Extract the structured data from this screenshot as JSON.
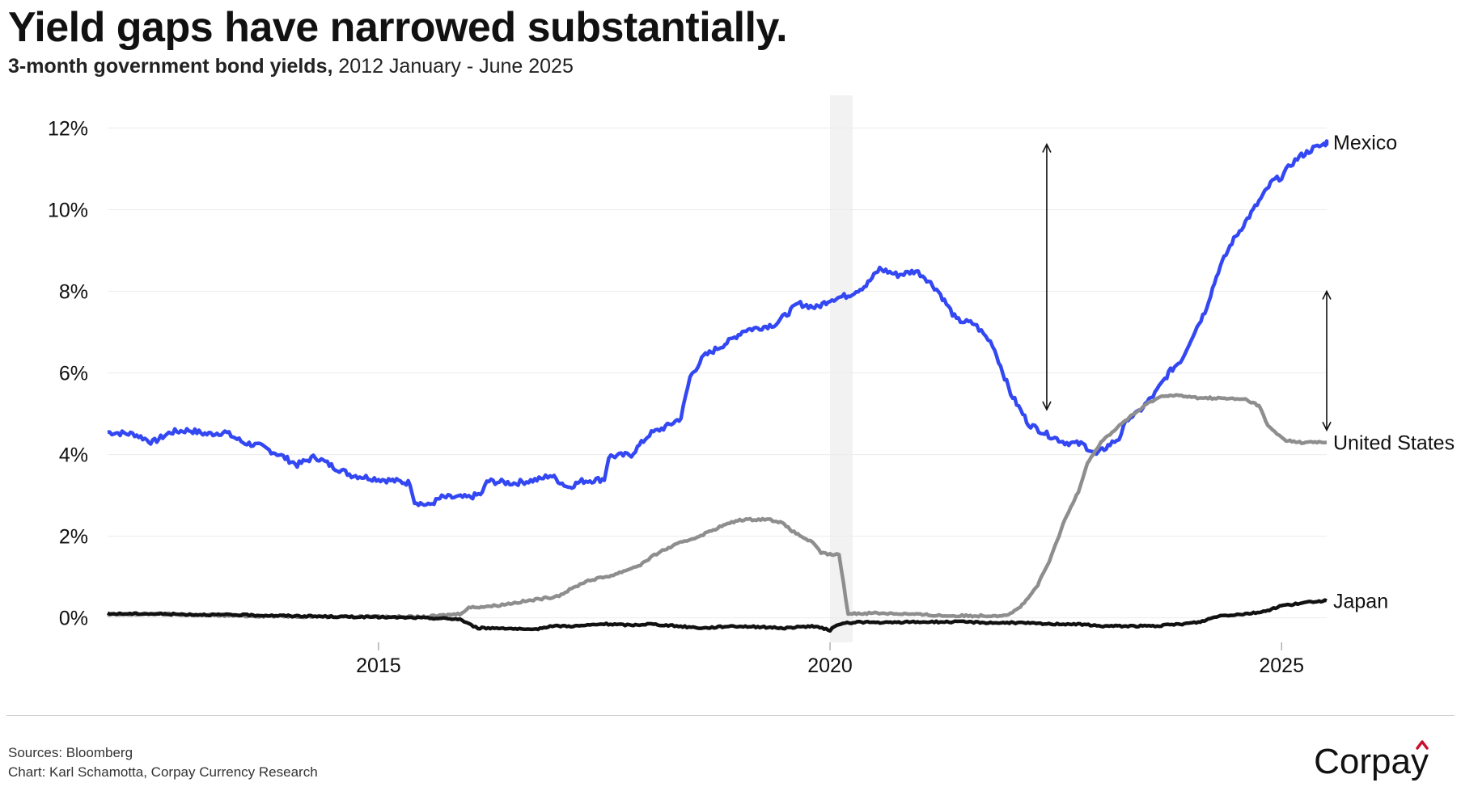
{
  "header": {
    "title": "Yield gaps have narrowed substantially.",
    "subtitle_bold": "3-month government bond yields,",
    "subtitle_rest": " 2012 January - June 2025"
  },
  "footer": {
    "sources": "Sources: Bloomberg",
    "credit": "Chart: Karl Schamotta, Corpay Currency Research",
    "logo": "Corpay",
    "logo_accent": "#c8102e"
  },
  "chart_data": {
    "type": "line",
    "title": "Yield gaps have narrowed substantially.",
    "xlabel": "",
    "ylabel": "",
    "xlim": [
      2012.0,
      2025.5
    ],
    "ylim": [
      -0.6,
      12.8
    ],
    "yticks": [
      0,
      2,
      4,
      6,
      8,
      10,
      12
    ],
    "ytick_labels": [
      "0%",
      "2%",
      "4%",
      "6%",
      "8%",
      "10%",
      "12%"
    ],
    "xticks": [
      2015,
      2020,
      2025
    ],
    "xtick_labels": [
      "2015",
      "2020",
      "2025"
    ],
    "grid": true,
    "shaded_region": {
      "x0": 2020.0,
      "x1": 2020.25,
      "color": "#f2f2f2"
    },
    "series": [
      {
        "name": "Mexico",
        "color": "#3347f2",
        "points": [
          [
            2012.0,
            4.55
          ],
          [
            2012.3,
            4.5
          ],
          [
            2012.5,
            4.3
          ],
          [
            2012.7,
            4.55
          ],
          [
            2012.9,
            4.6
          ],
          [
            2013.1,
            4.5
          ],
          [
            2013.3,
            4.55
          ],
          [
            2013.5,
            4.3
          ],
          [
            2013.7,
            4.2
          ],
          [
            2013.9,
            4.0
          ],
          [
            2014.1,
            3.75
          ],
          [
            2014.3,
            3.95
          ],
          [
            2014.5,
            3.7
          ],
          [
            2014.7,
            3.5
          ],
          [
            2015.0,
            3.4
          ],
          [
            2015.2,
            3.35
          ],
          [
            2015.35,
            3.3
          ],
          [
            2015.4,
            2.85
          ],
          [
            2015.55,
            2.75
          ],
          [
            2015.7,
            2.95
          ],
          [
            2016.0,
            2.95
          ],
          [
            2016.15,
            3.05
          ],
          [
            2016.2,
            3.35
          ],
          [
            2016.5,
            3.3
          ],
          [
            2016.8,
            3.4
          ],
          [
            2016.9,
            3.5
          ],
          [
            2017.1,
            3.2
          ],
          [
            2017.25,
            3.35
          ],
          [
            2017.5,
            3.4
          ],
          [
            2017.55,
            3.95
          ],
          [
            2017.8,
            4.0
          ],
          [
            2018.0,
            4.5
          ],
          [
            2018.2,
            4.7
          ],
          [
            2018.35,
            4.9
          ],
          [
            2018.45,
            5.9
          ],
          [
            2018.6,
            6.4
          ],
          [
            2018.75,
            6.6
          ],
          [
            2018.9,
            6.8
          ],
          [
            2019.05,
            7.05
          ],
          [
            2019.2,
            7.1
          ],
          [
            2019.4,
            7.2
          ],
          [
            2019.5,
            7.4
          ],
          [
            2019.65,
            7.7
          ],
          [
            2019.85,
            7.6
          ],
          [
            2020.0,
            7.8
          ],
          [
            2020.2,
            7.9
          ],
          [
            2020.4,
            8.15
          ],
          [
            2020.55,
            8.55
          ],
          [
            2020.75,
            8.4
          ],
          [
            2020.95,
            8.5
          ],
          [
            2021.05,
            8.35
          ],
          [
            2021.2,
            8.0
          ],
          [
            2021.4,
            7.3
          ],
          [
            2021.6,
            7.2
          ],
          [
            2021.7,
            6.95
          ],
          [
            2021.8,
            6.7
          ],
          [
            2022.0,
            5.5
          ],
          [
            2022.2,
            4.75
          ],
          [
            2022.4,
            4.5
          ],
          [
            2022.6,
            4.3
          ],
          [
            2022.8,
            4.25
          ],
          [
            2022.95,
            4.0
          ],
          [
            2023.1,
            4.25
          ],
          [
            2023.2,
            4.4
          ],
          [
            2023.3,
            4.9
          ],
          [
            2023.4,
            5.0
          ],
          [
            2023.6,
            5.5
          ],
          [
            2023.75,
            6.0
          ],
          [
            2023.9,
            6.35
          ],
          [
            2024.0,
            6.85
          ],
          [
            2024.15,
            7.5
          ],
          [
            2024.3,
            8.5
          ],
          [
            2024.45,
            9.2
          ],
          [
            2024.6,
            9.7
          ],
          [
            2024.75,
            10.2
          ],
          [
            2024.9,
            10.7
          ],
          [
            2025.0,
            10.8
          ],
          [
            2025.1,
            11.1
          ],
          [
            2025.2,
            11.3
          ],
          [
            2025.28,
            11.4
          ],
          [
            2025.35,
            11.5
          ],
          [
            2025.42,
            11.55
          ],
          [
            2025.47,
            11.6
          ],
          [
            2025.5,
            11.65
          ],
          [
            2025.5,
            11.65
          ]
        ]
      },
      {
        "name": "United States",
        "color": "#8e8e8e",
        "points": [
          [
            2012.0,
            0.07
          ],
          [
            2012.5,
            0.1
          ],
          [
            2013.0,
            0.07
          ],
          [
            2013.5,
            0.05
          ],
          [
            2014.0,
            0.04
          ],
          [
            2014.5,
            0.03
          ],
          [
            2015.0,
            0.03
          ],
          [
            2015.5,
            0.02
          ],
          [
            2015.9,
            0.1
          ],
          [
            2016.0,
            0.25
          ],
          [
            2016.3,
            0.3
          ],
          [
            2016.6,
            0.4
          ],
          [
            2016.9,
            0.5
          ],
          [
            2017.0,
            0.55
          ],
          [
            2017.3,
            0.9
          ],
          [
            2017.6,
            1.05
          ],
          [
            2017.9,
            1.3
          ],
          [
            2018.1,
            1.6
          ],
          [
            2018.3,
            1.8
          ],
          [
            2018.55,
            2.0
          ],
          [
            2018.8,
            2.25
          ],
          [
            2019.0,
            2.4
          ],
          [
            2019.3,
            2.42
          ],
          [
            2019.45,
            2.35
          ],
          [
            2019.6,
            2.1
          ],
          [
            2019.8,
            1.85
          ],
          [
            2019.9,
            1.6
          ],
          [
            2020.0,
            1.55
          ],
          [
            2020.1,
            1.55
          ],
          [
            2020.2,
            0.1
          ],
          [
            2020.5,
            0.12
          ],
          [
            2020.8,
            0.1
          ],
          [
            2021.0,
            0.08
          ],
          [
            2021.3,
            0.05
          ],
          [
            2021.6,
            0.05
          ],
          [
            2021.9,
            0.06
          ],
          [
            2022.0,
            0.1
          ],
          [
            2022.15,
            0.35
          ],
          [
            2022.3,
            0.8
          ],
          [
            2022.45,
            1.5
          ],
          [
            2022.6,
            2.4
          ],
          [
            2022.75,
            3.1
          ],
          [
            2022.85,
            3.8
          ],
          [
            2023.0,
            4.3
          ],
          [
            2023.1,
            4.5
          ],
          [
            2023.25,
            4.8
          ],
          [
            2023.4,
            5.05
          ],
          [
            2023.55,
            5.3
          ],
          [
            2023.7,
            5.45
          ],
          [
            2023.85,
            5.45
          ],
          [
            2024.0,
            5.4
          ],
          [
            2024.3,
            5.38
          ],
          [
            2024.6,
            5.35
          ],
          [
            2024.75,
            5.2
          ],
          [
            2024.85,
            4.7
          ],
          [
            2024.95,
            4.5
          ],
          [
            2025.05,
            4.35
          ],
          [
            2025.2,
            4.3
          ],
          [
            2025.35,
            4.3
          ],
          [
            2025.5,
            4.3
          ]
        ]
      },
      {
        "name": "Japan",
        "color": "#111111",
        "points": [
          [
            2012.0,
            0.1
          ],
          [
            2012.5,
            0.1
          ],
          [
            2013.0,
            0.08
          ],
          [
            2013.5,
            0.07
          ],
          [
            2014.0,
            0.05
          ],
          [
            2014.5,
            0.03
          ],
          [
            2015.0,
            0.02
          ],
          [
            2015.5,
            0.0
          ],
          [
            2015.9,
            -0.03
          ],
          [
            2016.0,
            -0.15
          ],
          [
            2016.1,
            -0.25
          ],
          [
            2016.4,
            -0.25
          ],
          [
            2016.7,
            -0.3
          ],
          [
            2016.9,
            -0.2
          ],
          [
            2017.2,
            -0.2
          ],
          [
            2017.5,
            -0.15
          ],
          [
            2017.8,
            -0.18
          ],
          [
            2018.0,
            -0.15
          ],
          [
            2018.3,
            -0.2
          ],
          [
            2018.6,
            -0.25
          ],
          [
            2018.9,
            -0.2
          ],
          [
            2019.2,
            -0.22
          ],
          [
            2019.5,
            -0.25
          ],
          [
            2019.8,
            -0.2
          ],
          [
            2020.0,
            -0.3
          ],
          [
            2020.1,
            -0.15
          ],
          [
            2020.3,
            -0.1
          ],
          [
            2020.6,
            -0.12
          ],
          [
            2020.9,
            -0.1
          ],
          [
            2021.2,
            -0.1
          ],
          [
            2021.5,
            -0.1
          ],
          [
            2021.8,
            -0.12
          ],
          [
            2022.1,
            -0.12
          ],
          [
            2022.4,
            -0.15
          ],
          [
            2022.7,
            -0.15
          ],
          [
            2023.0,
            -0.2
          ],
          [
            2023.3,
            -0.2
          ],
          [
            2023.6,
            -0.2
          ],
          [
            2023.9,
            -0.15
          ],
          [
            2024.1,
            -0.1
          ],
          [
            2024.3,
            0.05
          ],
          [
            2024.6,
            0.1
          ],
          [
            2024.8,
            0.15
          ],
          [
            2025.0,
            0.3
          ],
          [
            2025.2,
            0.35
          ],
          [
            2025.35,
            0.4
          ],
          [
            2025.5,
            0.42
          ]
        ]
      }
    ],
    "annotations": [
      {
        "type": "double-arrow",
        "x": 2022.4,
        "y_from": 11.6,
        "y_to": 5.1
      },
      {
        "type": "double-arrow",
        "x": 2025.5,
        "y_from": 8.0,
        "y_to": 4.6
      }
    ]
  }
}
